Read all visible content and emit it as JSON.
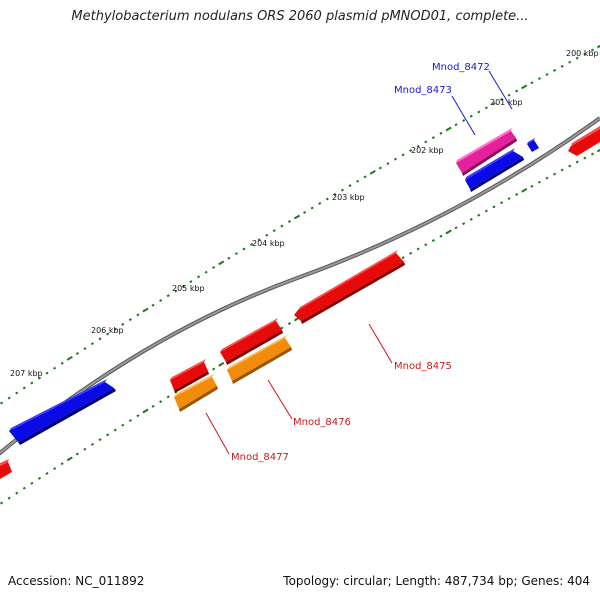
{
  "title": "Methylobacterium nodulans ORS 2060 plasmid pMNOD01, complete...",
  "footer": {
    "accession": "Accession: NC_011892",
    "summary": "Topology: circular; Length: 487,734 bp; Genes: 404"
  },
  "colors": {
    "backbone": "#7f7f7f",
    "tick": "#1a7a1a",
    "forward_cds": "#0a0ae6",
    "reverse_cds": "#e60a0a",
    "pink_cds": "#e61f9a",
    "orange_cds": "#f28c0a",
    "forward_label": "#1a1acc",
    "reverse_label": "#cc1a1a"
  },
  "ruler_labels": [
    "200 kbp",
    "201 kbp",
    "202 kbp",
    "203 kbp",
    "204 kbp",
    "205 kbp",
    "206 kbp",
    "207 kbp"
  ],
  "gene_labels": [
    {
      "name": "Mnod_8472",
      "strand": "forward"
    },
    {
      "name": "Mnod_8473",
      "strand": "forward"
    },
    {
      "name": "Mnod_8475",
      "strand": "reverse"
    },
    {
      "name": "Mnod_8476",
      "strand": "reverse"
    },
    {
      "name": "Mnod_8477",
      "strand": "reverse"
    }
  ],
  "features": [
    {
      "name": "blue-cds-1",
      "type": "forward"
    },
    {
      "name": "pink-cds-mnod-8472",
      "type": "pink"
    },
    {
      "name": "blue-cds-mnod-8473",
      "type": "forward"
    },
    {
      "name": "blue-cds-small",
      "type": "forward"
    },
    {
      "name": "red-cds-right-edge",
      "type": "reverse"
    },
    {
      "name": "red-cds-mnod-8475",
      "type": "reverse"
    },
    {
      "name": "red-cds-upper",
      "type": "reverse"
    },
    {
      "name": "orange-cds-mnod-8476",
      "type": "orange"
    },
    {
      "name": "red-cds-small",
      "type": "reverse"
    },
    {
      "name": "orange-cds-mnod-8477",
      "type": "orange"
    },
    {
      "name": "red-cds-left-edge",
      "type": "reverse"
    }
  ]
}
